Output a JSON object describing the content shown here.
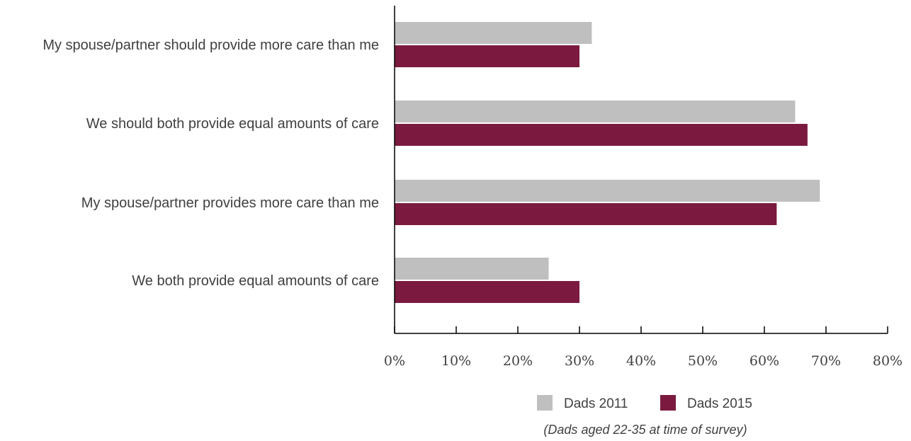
{
  "chart_data": {
    "type": "bar",
    "orientation": "horizontal",
    "categories": [
      "My spouse/partner should provide more care than me",
      "We should both provide equal amounts of care",
      "My spouse/partner provides more care than me",
      "We both provide equal amounts of care"
    ],
    "series": [
      {
        "name": "Dads 2011",
        "color": "#bfbfbf",
        "values": [
          32,
          65,
          69,
          25
        ]
      },
      {
        "name": "Dads 2015",
        "color": "#7b1a3e",
        "values": [
          30,
          67,
          62,
          30
        ]
      }
    ],
    "xlim": [
      0,
      80
    ],
    "xticks": [
      "0%",
      "10%",
      "20%",
      "30%",
      "40%",
      "50%",
      "60%",
      "70%",
      "80%"
    ],
    "xtick_values": [
      0,
      10,
      20,
      30,
      40,
      50,
      60,
      70,
      80
    ],
    "grid": false,
    "legend_position": "bottom",
    "footnote": "(Dads aged 22-35 at time of survey)"
  }
}
